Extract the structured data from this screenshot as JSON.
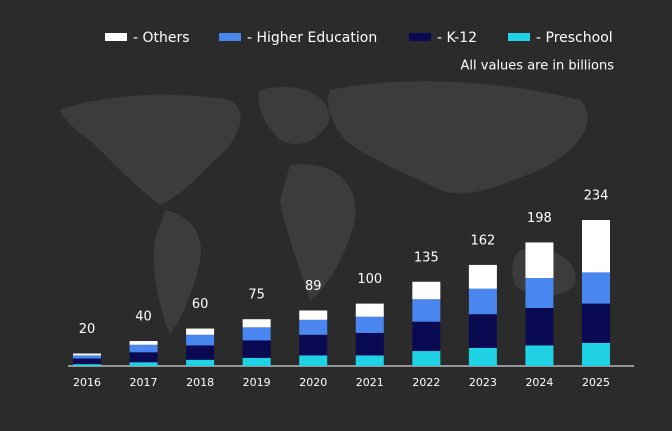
{
  "chart_data": {
    "type": "stacked_bar",
    "subtitle": "All values are in billions",
    "categories": [
      "2016",
      "2017",
      "2018",
      "2019",
      "2020",
      "2021",
      "2022",
      "2023",
      "2024",
      "2025"
    ],
    "totals": [
      20,
      40,
      60,
      75,
      89,
      100,
      135,
      162,
      198,
      234
    ],
    "series": [
      {
        "name": "- Others",
        "color": "#ffffff",
        "values": [
          3,
          6,
          10,
          13,
          15,
          21,
          28,
          38,
          57,
          84
        ]
      },
      {
        "name": "- Higher Education",
        "color": "#4a86f0",
        "values": [
          5,
          12,
          17,
          21,
          24,
          26,
          36,
          41,
          48,
          50
        ]
      },
      {
        "name": "- K-12",
        "color": "#0a0a52",
        "values": [
          9,
          16,
          23,
          28,
          33,
          36,
          47,
          54,
          60,
          63
        ]
      },
      {
        "name": "- Preschool",
        "color": "#1fd2e6",
        "values": [
          3,
          6,
          10,
          13,
          17,
          17,
          24,
          29,
          33,
          37
        ]
      }
    ]
  }
}
